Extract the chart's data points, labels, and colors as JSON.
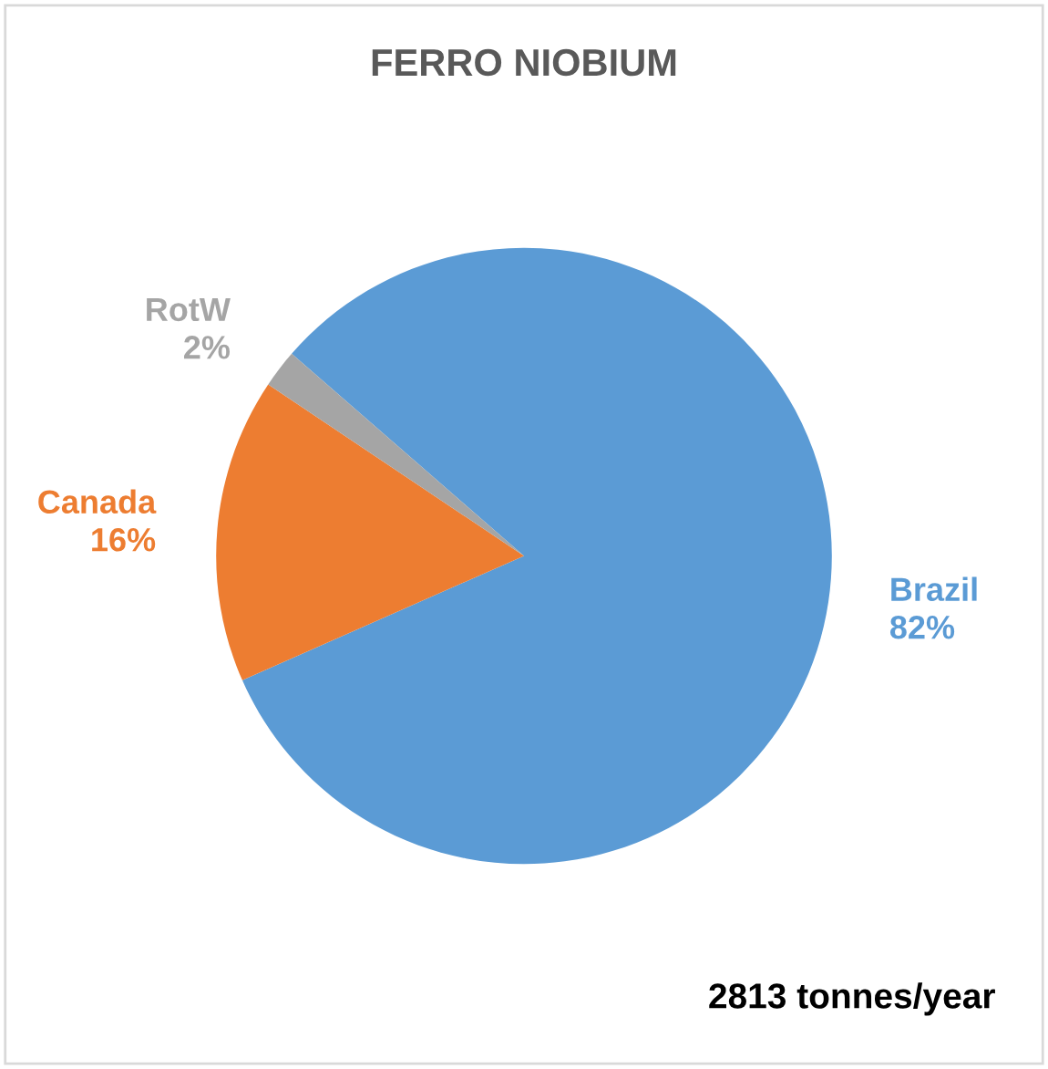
{
  "chart_data": {
    "type": "pie",
    "title": "FERRO NIOBIUM",
    "categories": [
      "Brazil",
      "Canada",
      "RotW"
    ],
    "values": [
      82,
      16,
      2
    ],
    "colors": [
      "#5b9bd5",
      "#ed7d31",
      "#a5a5a5"
    ],
    "value_labels": [
      "82%",
      "16%",
      "2%"
    ],
    "annotations": [
      "2813 tonnes/year"
    ],
    "legend": false
  }
}
